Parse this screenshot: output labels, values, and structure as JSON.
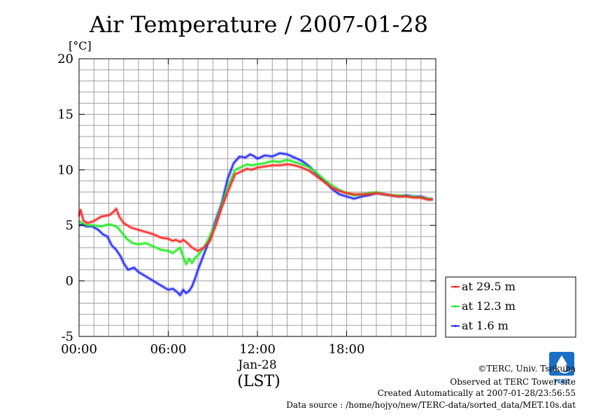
{
  "chart_data": {
    "type": "line",
    "title": "Air Temperature / 2007-01-28",
    "ylabel": "[°C]",
    "xlabel": "(LST)",
    "date_label": "Jan-28",
    "ylim": [
      -5,
      20
    ],
    "xlim": [
      0,
      24
    ],
    "y_ticks": [
      20,
      15,
      10,
      5,
      0,
      -5
    ],
    "x_ticks": [
      {
        "value": 0,
        "label": "00:00"
      },
      {
        "value": 6,
        "label": "06:00"
      },
      {
        "value": 12,
        "label": "12:00"
      },
      {
        "value": 18,
        "label": "18:00"
      }
    ],
    "grid": true,
    "legend_position": "right, below plot",
    "series": [
      {
        "name": "at 29.5 m",
        "color": "#ff2a2a",
        "x": [
          0,
          0.1,
          0.3,
          0.6,
          1.0,
          1.5,
          2.0,
          2.3,
          2.5,
          2.7,
          3.0,
          3.5,
          4.0,
          4.5,
          5.0,
          5.5,
          6.0,
          6.3,
          6.5,
          6.8,
          7.0,
          7.3,
          7.6,
          8.0,
          8.4,
          8.8,
          9.2,
          9.6,
          10.0,
          10.5,
          11.0,
          11.3,
          11.6,
          12.0,
          12.5,
          13.0,
          13.5,
          14.0,
          14.5,
          15.0,
          15.5,
          16.0,
          16.5,
          17.0,
          17.5,
          18.0,
          18.5,
          19.0,
          19.5,
          20.0,
          20.5,
          21.0,
          21.5,
          22.0,
          22.5,
          23.0,
          23.5,
          23.8
        ],
        "y": [
          5.8,
          6.4,
          5.4,
          5.2,
          5.4,
          5.8,
          5.9,
          6.2,
          6.5,
          5.8,
          5.2,
          4.8,
          4.6,
          4.4,
          4.2,
          3.9,
          3.8,
          3.6,
          3.7,
          3.5,
          3.7,
          3.4,
          3.0,
          2.7,
          3.0,
          3.6,
          5.0,
          6.6,
          8.0,
          9.6,
          9.9,
          10.1,
          10.0,
          10.2,
          10.3,
          10.4,
          10.4,
          10.5,
          10.4,
          10.2,
          9.9,
          9.4,
          8.9,
          8.4,
          8.1,
          7.9,
          7.8,
          7.8,
          7.8,
          7.9,
          7.8,
          7.7,
          7.6,
          7.6,
          7.5,
          7.5,
          7.3,
          7.4
        ]
      },
      {
        "name": "at 12.3 m",
        "color": "#22ee22",
        "x": [
          0,
          0.2,
          0.6,
          1.0,
          1.5,
          2.0,
          2.3,
          2.6,
          2.9,
          3.2,
          3.6,
          4.0,
          4.5,
          5.0,
          5.5,
          6.0,
          6.3,
          6.6,
          6.8,
          7.0,
          7.2,
          7.4,
          7.6,
          7.8,
          8.0,
          8.4,
          8.8,
          9.2,
          9.6,
          10.0,
          10.5,
          11.0,
          11.3,
          11.6,
          12.0,
          12.5,
          13.0,
          13.5,
          14.0,
          14.5,
          15.0,
          15.5,
          16.0,
          16.5,
          17.0,
          17.5,
          18.0,
          18.5,
          19.0,
          19.5,
          20.0,
          20.5,
          21.0,
          21.5,
          22.0,
          22.5,
          23.0,
          23.5,
          23.8
        ],
        "y": [
          5.4,
          5.2,
          5.0,
          5.0,
          4.9,
          5.1,
          5.0,
          4.8,
          4.3,
          3.8,
          3.4,
          3.3,
          3.4,
          3.1,
          2.8,
          2.7,
          2.5,
          2.8,
          3.0,
          2.2,
          1.5,
          2.0,
          1.6,
          2.1,
          2.3,
          3.0,
          4.0,
          5.2,
          6.8,
          8.4,
          10.0,
          10.3,
          10.5,
          10.4,
          10.5,
          10.6,
          10.8,
          10.7,
          10.9,
          10.7,
          10.5,
          10.2,
          9.7,
          9.1,
          8.6,
          8.2,
          7.9,
          7.7,
          7.8,
          7.9,
          8.0,
          7.8,
          7.7,
          7.7,
          7.6,
          7.6,
          7.5,
          7.4,
          7.3
        ]
      },
      {
        "name": "at 1.6 m",
        "color": "#2a2aff",
        "x": [
          0,
          0.2,
          0.5,
          0.9,
          1.3,
          1.6,
          1.9,
          2.2,
          2.5,
          2.8,
          3.0,
          3.3,
          3.7,
          4.0,
          4.5,
          5.0,
          5.5,
          6.0,
          6.3,
          6.6,
          6.8,
          7.0,
          7.2,
          7.4,
          7.6,
          7.8,
          8.0,
          8.4,
          8.8,
          9.2,
          9.6,
          10.0,
          10.4,
          10.8,
          11.2,
          11.5,
          11.8,
          12.0,
          12.5,
          13.0,
          13.5,
          14.0,
          14.5,
          15.0,
          15.5,
          16.0,
          16.5,
          17.0,
          17.5,
          18.0,
          18.5,
          19.0,
          19.5,
          20.0,
          20.5,
          21.0,
          21.5,
          22.0,
          22.5,
          23.0,
          23.5,
          23.8
        ],
        "y": [
          5.0,
          5.1,
          4.9,
          4.9,
          4.6,
          4.2,
          4.0,
          3.2,
          2.8,
          2.2,
          1.6,
          1.0,
          1.2,
          0.8,
          0.4,
          0.0,
          -0.4,
          -0.8,
          -0.7,
          -1.0,
          -1.3,
          -0.8,
          -1.1,
          -0.9,
          -0.5,
          0.2,
          1.0,
          2.4,
          3.8,
          5.5,
          7.0,
          9.2,
          10.6,
          11.2,
          11.1,
          11.4,
          11.2,
          11.0,
          11.3,
          11.2,
          11.5,
          11.4,
          11.1,
          10.8,
          10.3,
          9.6,
          9.0,
          8.3,
          7.8,
          7.6,
          7.4,
          7.6,
          7.7,
          7.9,
          7.8,
          7.7,
          7.6,
          7.7,
          7.6,
          7.6,
          7.4,
          7.3
        ]
      }
    ]
  },
  "footer": {
    "copyright": "©TERC, Univ. Tsukuba",
    "observed": "Observed at TERC Tower site",
    "created": "Created Automatically at 2007-01-28/23:56:55",
    "source": "Data source : /home/hojyo/new/TERC-data/sorted_data/MET.10s.dat"
  },
  "logo": {
    "text": "TERC",
    "color": "#1a6fc4"
  }
}
